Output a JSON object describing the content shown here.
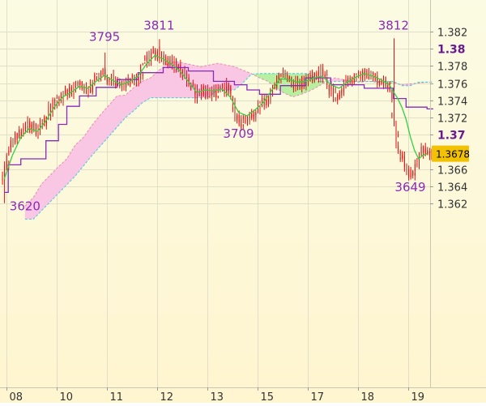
{
  "colors": {
    "background_top": "#fbfbe3",
    "background_bottom": "#fff5cf",
    "grid": "#e0e0c8",
    "candles": "#e01010",
    "kumo_bear_fill": "#f9c6e4",
    "kumo_bear_edge": "#f08ab0",
    "kumo_bull_fill": "#b6f0a0",
    "kumo_bull_edge": "#46c8e8",
    "tenkan": "#32d040",
    "kijun": "#8a2ab8",
    "annotation_text": "#8a2ab8",
    "axis_text": "#333333",
    "axis_bold_text": "#6a1a90",
    "price_tag_bg": "#f2c100",
    "price_tag_text": "#000000"
  },
  "chart_data": {
    "type": "candlestick",
    "instrument": "",
    "price_tag": "1.3678",
    "current_price": 1.3678,
    "ylim": [
      1.3605,
      1.3832
    ],
    "y_ticks": [
      {
        "value": 1.382,
        "label": "1.382",
        "bold": false
      },
      {
        "value": 1.38,
        "label": "1.38",
        "bold": true
      },
      {
        "value": 1.378,
        "label": "1.378",
        "bold": false
      },
      {
        "value": 1.376,
        "label": "1.376",
        "bold": false
      },
      {
        "value": 1.374,
        "label": "1.374",
        "bold": false
      },
      {
        "value": 1.372,
        "label": "1.372",
        "bold": false
      },
      {
        "value": 1.37,
        "label": "1.37",
        "bold": true
      },
      {
        "value": 1.368,
        "label": "1.368",
        "bold": false
      },
      {
        "value": 1.366,
        "label": "1.366",
        "bold": false
      },
      {
        "value": 1.364,
        "label": "1.364",
        "bold": false
      },
      {
        "value": 1.362,
        "label": "1.362",
        "bold": false
      }
    ],
    "x_ticks": [
      {
        "t": 0.5,
        "label": "08"
      },
      {
        "t": 12.5,
        "label": "10"
      },
      {
        "t": 24.5,
        "label": "11"
      },
      {
        "t": 36.5,
        "label": "12"
      },
      {
        "t": 48.5,
        "label": "13"
      },
      {
        "t": 60.5,
        "label": "15"
      },
      {
        "t": 72.5,
        "label": "17"
      },
      {
        "t": 84.5,
        "label": "18"
      },
      {
        "t": 96.5,
        "label": "19"
      }
    ],
    "xlim": [
      0,
      102.8
    ],
    "last_candle_t": 101,
    "annotations": [
      {
        "label": "3620",
        "t": 5,
        "price": 1.3612
      },
      {
        "label": "3795",
        "t": 24,
        "price": 1.3809
      },
      {
        "label": "3811",
        "t": 37,
        "price": 1.3822
      },
      {
        "label": "3709",
        "t": 56,
        "price": 1.36965
      },
      {
        "label": "3812",
        "t": 93,
        "price": 1.3822
      },
      {
        "label": "3649",
        "t": 97,
        "price": 1.36345
      }
    ],
    "close_anchors": [
      [
        0,
        1.3653
      ],
      [
        2,
        1.3692
      ],
      [
        4,
        1.3702
      ],
      [
        6,
        1.3712
      ],
      [
        8,
        1.3705
      ],
      [
        10,
        1.3718
      ],
      [
        12,
        1.3738
      ],
      [
        14,
        1.3746
      ],
      [
        16,
        1.3752
      ],
      [
        18,
        1.3762
      ],
      [
        20,
        1.3748
      ],
      [
        22,
        1.3766
      ],
      [
        24,
        1.3772
      ],
      [
        26,
        1.3762
      ],
      [
        28,
        1.3757
      ],
      [
        30,
        1.3762
      ],
      [
        32,
        1.3767
      ],
      [
        34,
        1.3787
      ],
      [
        36,
        1.3795
      ],
      [
        38,
        1.3786
      ],
      [
        40,
        1.3782
      ],
      [
        42,
        1.3777
      ],
      [
        44,
        1.3762
      ],
      [
        46,
        1.3747
      ],
      [
        48,
        1.3752
      ],
      [
        50,
        1.3747
      ],
      [
        52,
        1.3752
      ],
      [
        54,
        1.3757
      ],
      [
        55,
        1.3727
      ],
      [
        56,
        1.3712
      ],
      [
        57,
        1.3717
      ],
      [
        59,
        1.3722
      ],
      [
        61,
        1.3732
      ],
      [
        63,
        1.3742
      ],
      [
        65,
        1.3762
      ],
      [
        67,
        1.3772
      ],
      [
        68,
        1.3762
      ],
      [
        70,
        1.3757
      ],
      [
        72,
        1.3762
      ],
      [
        74,
        1.3767
      ],
      [
        76,
        1.3772
      ],
      [
        78,
        1.3752
      ],
      [
        80,
        1.3742
      ],
      [
        82,
        1.3762
      ],
      [
        84,
        1.3767
      ],
      [
        86,
        1.3772
      ],
      [
        88,
        1.3767
      ],
      [
        90,
        1.3762
      ],
      [
        92,
        1.3757
      ],
      [
        93,
        1.3722
      ],
      [
        94,
        1.3682
      ],
      [
        95,
        1.3672
      ],
      [
        96,
        1.3662
      ],
      [
        97,
        1.3652
      ],
      [
        98,
        1.3662
      ],
      [
        99,
        1.3672
      ],
      [
        100,
        1.3682
      ],
      [
        101,
        1.3678
      ]
    ],
    "tenkan": [
      [
        0,
        1.3648
      ],
      [
        2,
        1.3676
      ],
      [
        4,
        1.3697
      ],
      [
        6,
        1.3707
      ],
      [
        8,
        1.3704
      ],
      [
        10,
        1.3716
      ],
      [
        12,
        1.3732
      ],
      [
        14,
        1.3744
      ],
      [
        16,
        1.3749
      ],
      [
        18,
        1.3756
      ],
      [
        20,
        1.3754
      ],
      [
        22,
        1.3762
      ],
      [
        24,
        1.3769
      ],
      [
        26,
        1.3763
      ],
      [
        28,
        1.3758
      ],
      [
        30,
        1.3762
      ],
      [
        32,
        1.3768
      ],
      [
        34,
        1.3782
      ],
      [
        36,
        1.3792
      ],
      [
        38,
        1.3788
      ],
      [
        40,
        1.3782
      ],
      [
        42,
        1.3774
      ],
      [
        44,
        1.3762
      ],
      [
        46,
        1.3749
      ],
      [
        48,
        1.3752
      ],
      [
        50,
        1.3751
      ],
      [
        52,
        1.3753
      ],
      [
        54,
        1.3744
      ],
      [
        56,
        1.3726
      ],
      [
        58,
        1.3722
      ],
      [
        60,
        1.3729
      ],
      [
        62,
        1.3738
      ],
      [
        64,
        1.3752
      ],
      [
        66,
        1.3765
      ],
      [
        68,
        1.3764
      ],
      [
        70,
        1.3761
      ],
      [
        72,
        1.3762
      ],
      [
        74,
        1.3766
      ],
      [
        76,
        1.3768
      ],
      [
        78,
        1.3758
      ],
      [
        80,
        1.3754
      ],
      [
        82,
        1.3761
      ],
      [
        84,
        1.3767
      ],
      [
        86,
        1.3771
      ],
      [
        88,
        1.3768
      ],
      [
        90,
        1.3764
      ],
      [
        92,
        1.3758
      ],
      [
        94,
        1.3742
      ],
      [
        95,
        1.3732
      ],
      [
        96,
        1.3718
      ],
      [
        97,
        1.3698
      ],
      [
        98,
        1.3682
      ],
      [
        99,
        1.3672
      ],
      [
        100,
        1.3676
      ],
      [
        101,
        1.3678
      ]
    ],
    "kijun": [
      [
        0,
        1.3633
      ],
      [
        1,
        1.3633
      ],
      [
        1,
        1.3665
      ],
      [
        4,
        1.3665
      ],
      [
        4,
        1.3672
      ],
      [
        10,
        1.3672
      ],
      [
        10,
        1.3693
      ],
      [
        13,
        1.3693
      ],
      [
        13,
        1.3712
      ],
      [
        15,
        1.3712
      ],
      [
        15,
        1.3733
      ],
      [
        18,
        1.3733
      ],
      [
        18,
        1.3745
      ],
      [
        22,
        1.3745
      ],
      [
        22,
        1.3755
      ],
      [
        27,
        1.3755
      ],
      [
        27,
        1.3764
      ],
      [
        32,
        1.3764
      ],
      [
        32,
        1.3772
      ],
      [
        38,
        1.3772
      ],
      [
        38,
        1.3778
      ],
      [
        44,
        1.3778
      ],
      [
        44,
        1.3774
      ],
      [
        50,
        1.3774
      ],
      [
        50,
        1.3762
      ],
      [
        55,
        1.3762
      ],
      [
        55,
        1.3758
      ],
      [
        58,
        1.3758
      ],
      [
        58,
        1.3752
      ],
      [
        61,
        1.3752
      ],
      [
        61,
        1.3747
      ],
      [
        66,
        1.3747
      ],
      [
        66,
        1.3757
      ],
      [
        72,
        1.3757
      ],
      [
        72,
        1.3766
      ],
      [
        78,
        1.3766
      ],
      [
        78,
        1.3758
      ],
      [
        86,
        1.3758
      ],
      [
        86,
        1.3754
      ],
      [
        93,
        1.3754
      ],
      [
        93,
        1.3742
      ],
      [
        96,
        1.3742
      ],
      [
        96,
        1.3732
      ],
      [
        101,
        1.3732
      ],
      [
        101,
        1.373
      ],
      [
        102.5,
        1.373
      ]
    ],
    "senkou_a": [
      [
        5,
        1.3617
      ],
      [
        7,
        1.3627
      ],
      [
        9,
        1.3643
      ],
      [
        11,
        1.3653
      ],
      [
        13,
        1.3663
      ],
      [
        15,
        1.3672
      ],
      [
        17,
        1.3688
      ],
      [
        19,
        1.3697
      ],
      [
        21,
        1.3711
      ],
      [
        23,
        1.3723
      ],
      [
        25,
        1.3734
      ],
      [
        27,
        1.3745
      ],
      [
        29,
        1.3746
      ],
      [
        31,
        1.3755
      ],
      [
        33,
        1.3762
      ],
      [
        35,
        1.3766
      ],
      [
        37,
        1.3775
      ],
      [
        39,
        1.3782
      ],
      [
        41,
        1.3785
      ],
      [
        43,
        1.3783
      ],
      [
        45,
        1.3781
      ],
      [
        47,
        1.3779
      ],
      [
        49,
        1.3781
      ],
      [
        51,
        1.3783
      ],
      [
        53,
        1.3781
      ],
      [
        55,
        1.3779
      ],
      [
        57,
        1.3775
      ],
      [
        59,
        1.3771
      ],
      [
        61,
        1.3766
      ],
      [
        63,
        1.3762
      ],
      [
        65,
        1.3754
      ],
      [
        67,
        1.3748
      ],
      [
        69,
        1.3744
      ],
      [
        71,
        1.3747
      ],
      [
        73,
        1.3751
      ],
      [
        75,
        1.3756
      ],
      [
        77,
        1.3762
      ],
      [
        79,
        1.3766
      ],
      [
        81,
        1.3764
      ],
      [
        83,
        1.3762
      ],
      [
        85,
        1.3761
      ],
      [
        87,
        1.3762
      ],
      [
        89,
        1.3761
      ],
      [
        91,
        1.376
      ],
      [
        93,
        1.376
      ],
      [
        95,
        1.3758
      ],
      [
        97,
        1.3759
      ],
      [
        99,
        1.376
      ],
      [
        101,
        1.3761
      ],
      [
        102.5,
        1.3761
      ]
    ],
    "senkou_b": [
      [
        5,
        1.3602
      ],
      [
        7,
        1.3602
      ],
      [
        9,
        1.3612
      ],
      [
        11,
        1.3622
      ],
      [
        13,
        1.3632
      ],
      [
        15,
        1.3642
      ],
      [
        17,
        1.3652
      ],
      [
        19,
        1.3664
      ],
      [
        21,
        1.3676
      ],
      [
        23,
        1.3687
      ],
      [
        25,
        1.3698
      ],
      [
        27,
        1.3709
      ],
      [
        29,
        1.372
      ],
      [
        31,
        1.3728
      ],
      [
        33,
        1.3737
      ],
      [
        35,
        1.3743
      ],
      [
        37,
        1.3743
      ],
      [
        39,
        1.3743
      ],
      [
        41,
        1.3743
      ],
      [
        43,
        1.3743
      ],
      [
        45,
        1.3743
      ],
      [
        47,
        1.3743
      ],
      [
        49,
        1.3744
      ],
      [
        51,
        1.3752
      ],
      [
        53,
        1.3752
      ],
      [
        55,
        1.3752
      ],
      [
        57,
        1.376
      ],
      [
        59,
        1.377
      ],
      [
        61,
        1.3771
      ],
      [
        63,
        1.3771
      ],
      [
        65,
        1.3771
      ],
      [
        67,
        1.3771
      ],
      [
        69,
        1.3771
      ],
      [
        71,
        1.3771
      ],
      [
        73,
        1.3771
      ],
      [
        75,
        1.3762
      ],
      [
        77,
        1.3762
      ],
      [
        79,
        1.3762
      ],
      [
        81,
        1.3762
      ],
      [
        83,
        1.3762
      ],
      [
        85,
        1.3762
      ],
      [
        87,
        1.3762
      ],
      [
        89,
        1.3762
      ],
      [
        91,
        1.3762
      ],
      [
        93,
        1.3762
      ],
      [
        95,
        1.3757
      ],
      [
        97,
        1.3757
      ],
      [
        99,
        1.3761
      ],
      [
        101,
        1.3761
      ],
      [
        102.5,
        1.3761
      ]
    ]
  }
}
